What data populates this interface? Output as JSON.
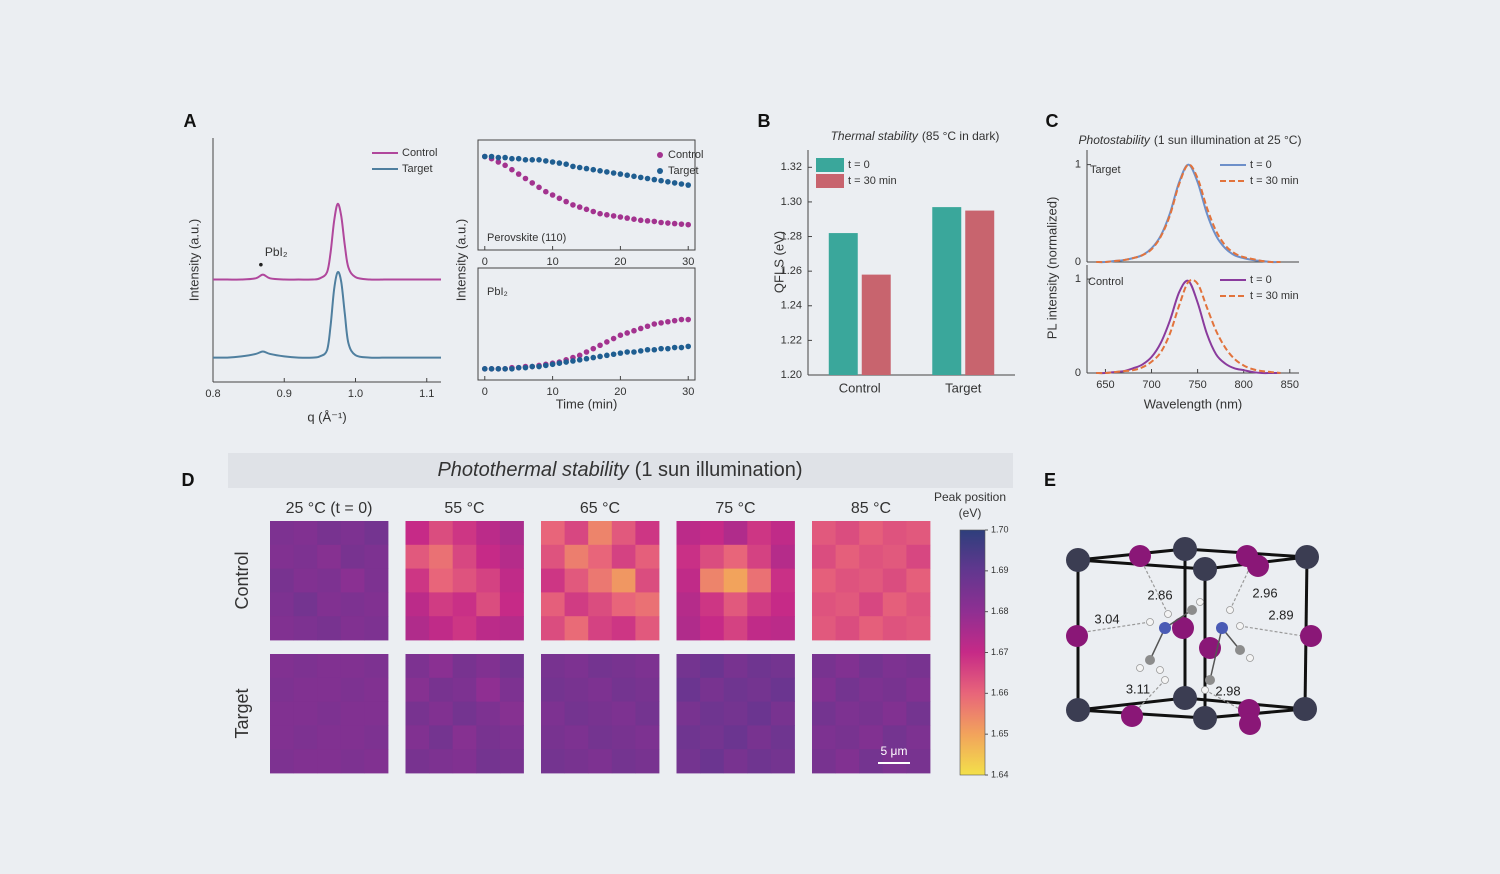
{
  "panel_labels": [
    "A",
    "B",
    "C",
    "D",
    "E"
  ],
  "chart_data": [
    {
      "type": "line",
      "ylabel": "Intensity (a.u.)",
      "xlabel": "q (Å⁻¹)",
      "annotation": "PbI₂",
      "x": [
        0.8,
        0.82,
        0.84,
        0.86,
        0.87,
        0.88,
        0.9,
        0.92,
        0.94,
        0.95,
        0.96,
        0.965,
        0.97,
        0.975,
        0.98,
        0.985,
        0.99,
        1,
        1.02,
        1.04,
        1.06,
        1.08,
        1.1,
        1.12
      ],
      "series": [
        {
          "name": "Control",
          "color": "#b0479c",
          "values": [
            4.2,
            4.2,
            4.2,
            4.25,
            4.4,
            4.25,
            4.2,
            4.2,
            4.2,
            4.25,
            4.5,
            5.3,
            6.6,
            7.3,
            6.8,
            5.6,
            4.7,
            4.3,
            4.2,
            4.2,
            4.2,
            4.2,
            4.2,
            4.2
          ]
        },
        {
          "name": "Target",
          "color": "#4f7f9f",
          "values": [
            1.0,
            1.0,
            1.05,
            1.15,
            1.25,
            1.15,
            1.05,
            1.0,
            1.0,
            1.05,
            1.3,
            2.3,
            3.8,
            4.5,
            4.1,
            2.8,
            1.6,
            1.1,
            1.0,
            1.0,
            1.0,
            1.0,
            1.0,
            1.0
          ]
        }
      ],
      "xlim": [
        0.8,
        1.12
      ],
      "xticks": [
        0.8,
        0.9,
        {
          "value": 1,
          "label": "1.0"
        },
        1.1
      ],
      "ylim": [
        0,
        10
      ],
      "legend": "upper right"
    },
    {
      "type": "scatter",
      "label": "Perovskite (110)",
      "x": [
        0,
        1,
        2,
        3,
        4,
        5,
        6,
        7,
        8,
        9,
        10,
        11,
        12,
        13,
        14,
        15,
        16,
        17,
        18,
        19,
        20,
        21,
        22,
        23,
        24,
        25,
        26,
        27,
        28,
        29,
        30
      ],
      "series": [
        {
          "name": "Control",
          "color": "#a3338f",
          "values": [
            0.85,
            0.83,
            0.8,
            0.77,
            0.73,
            0.69,
            0.65,
            0.61,
            0.57,
            0.53,
            0.5,
            0.47,
            0.44,
            0.41,
            0.39,
            0.37,
            0.35,
            0.33,
            0.32,
            0.31,
            0.3,
            0.29,
            0.28,
            0.27,
            0.265,
            0.26,
            0.25,
            0.245,
            0.24,
            0.235,
            0.23
          ]
        },
        {
          "name": "Target",
          "color": "#1f5e91",
          "values": [
            0.85,
            0.85,
            0.84,
            0.84,
            0.83,
            0.83,
            0.82,
            0.82,
            0.82,
            0.81,
            0.8,
            0.79,
            0.78,
            0.76,
            0.75,
            0.74,
            0.73,
            0.72,
            0.71,
            0.7,
            0.69,
            0.68,
            0.67,
            0.66,
            0.65,
            0.64,
            0.63,
            0.62,
            0.61,
            0.6,
            0.59
          ]
        }
      ],
      "xlim": [
        -1,
        31
      ],
      "xticks": [
        0,
        10,
        20,
        30
      ],
      "ylim": [
        0,
        1
      ],
      "legend": "upper right"
    },
    {
      "type": "scatter",
      "label": "PbI₂",
      "xlabel": "Time (min)",
      "ylabel": "Intensity (a.u.)",
      "x": [
        0,
        1,
        2,
        3,
        4,
        5,
        6,
        7,
        8,
        9,
        10,
        11,
        12,
        13,
        14,
        15,
        16,
        17,
        18,
        19,
        20,
        21,
        22,
        23,
        24,
        25,
        26,
        27,
        28,
        29,
        30
      ],
      "series": [
        {
          "color": "#a3338f",
          "values": [
            0.1,
            0.1,
            0.1,
            0.1,
            0.11,
            0.11,
            0.12,
            0.12,
            0.13,
            0.14,
            0.15,
            0.16,
            0.18,
            0.2,
            0.22,
            0.25,
            0.28,
            0.31,
            0.34,
            0.37,
            0.4,
            0.42,
            0.44,
            0.46,
            0.48,
            0.5,
            0.51,
            0.52,
            0.53,
            0.54,
            0.54
          ]
        },
        {
          "color": "#1f5e91",
          "values": [
            0.1,
            0.1,
            0.1,
            0.1,
            0.1,
            0.11,
            0.11,
            0.12,
            0.12,
            0.13,
            0.14,
            0.15,
            0.16,
            0.17,
            0.18,
            0.19,
            0.2,
            0.21,
            0.22,
            0.23,
            0.24,
            0.25,
            0.25,
            0.26,
            0.27,
            0.27,
            0.28,
            0.28,
            0.29,
            0.29,
            0.3
          ]
        }
      ],
      "xlim": [
        -1,
        31
      ],
      "xticks": [
        0,
        10,
        20,
        30
      ],
      "ylim": [
        0,
        1
      ]
    },
    {
      "type": "bar",
      "title": {
        "italic": "Thermal stability",
        "rest": "(85 °C in dark)"
      },
      "ylabel": "QFLS (eV)",
      "categories": [
        "Control",
        "Target"
      ],
      "series": [
        {
          "name": "t = 0",
          "color": "#3aa79b",
          "values": [
            1.282,
            1.297
          ]
        },
        {
          "name": "t = 30 min",
          "color": "#c8646e",
          "values": [
            1.258,
            1.295
          ]
        }
      ],
      "ylim": [
        1.2,
        1.33
      ],
      "yticks": [
        {
          "value": 1.2,
          "label": "1.20"
        },
        1.22,
        1.24,
        1.26,
        1.28,
        {
          "value": 1.3,
          "label": "1.30"
        },
        1.32
      ],
      "legend": "upper left"
    },
    {
      "type": "line",
      "title": {
        "italic": "Photostability",
        "rest": "(1 sun illumination at 25 °C)"
      },
      "ylabel": "PL intensity (normalized)",
      "label": "Target",
      "x": [
        640,
        650,
        660,
        670,
        680,
        690,
        700,
        710,
        720,
        730,
        740,
        750,
        760,
        770,
        780,
        790,
        800,
        810,
        820,
        830,
        840
      ],
      "series": [
        {
          "name": "t = 0",
          "color": "#6d8fc9",
          "dash": false,
          "values": [
            0,
            0,
            0.01,
            0.02,
            0.04,
            0.07,
            0.14,
            0.27,
            0.5,
            0.82,
            1,
            0.82,
            0.5,
            0.27,
            0.14,
            0.07,
            0.04,
            0.02,
            0.01,
            0,
            0
          ]
        },
        {
          "name": "t = 30 min",
          "color": "#e2733c",
          "dash": true,
          "values": [
            0,
            0,
            0.01,
            0.02,
            0.04,
            0.07,
            0.13,
            0.26,
            0.48,
            0.8,
            1,
            0.86,
            0.56,
            0.32,
            0.17,
            0.09,
            0.05,
            0.03,
            0.01,
            0,
            0
          ]
        }
      ],
      "xlim": [
        630,
        860
      ],
      "ylim": [
        0,
        1.15
      ],
      "yticks": [
        0,
        1
      ],
      "legend": "upper right"
    },
    {
      "type": "line",
      "label": "Control",
      "xlabel": "Wavelength (nm)",
      "x": [
        640,
        650,
        660,
        670,
        680,
        690,
        700,
        710,
        720,
        730,
        740,
        750,
        760,
        770,
        780,
        790,
        800,
        810,
        820,
        830,
        840
      ],
      "series": [
        {
          "name": "t = 0",
          "color": "#8a3b9d",
          "dash": false,
          "values": [
            0,
            0,
            0.01,
            0.02,
            0.05,
            0.09,
            0.17,
            0.32,
            0.56,
            0.86,
            0.98,
            0.75,
            0.42,
            0.2,
            0.1,
            0.05,
            0.03,
            0.01,
            0,
            0,
            0
          ]
        },
        {
          "name": "t = 30 min",
          "color": "#e2733c",
          "dash": true,
          "values": [
            0,
            0,
            0.01,
            0.02,
            0.03,
            0.06,
            0.12,
            0.22,
            0.42,
            0.72,
            0.97,
            0.95,
            0.7,
            0.45,
            0.27,
            0.15,
            0.08,
            0.04,
            0.02,
            0.01,
            0
          ]
        }
      ],
      "xlim": [
        630,
        860
      ],
      "xticks": [
        650,
        700,
        750,
        800,
        850
      ],
      "ylim": [
        0,
        1.15
      ],
      "yticks": [
        0,
        1
      ],
      "legend": "upper right"
    },
    {
      "type": "heatmap",
      "title": {
        "italic": "Photothermal stability",
        "rest": "(1 sun illumination)"
      },
      "columns": [
        "25 °C (t = 0)",
        "55 °C",
        "65 °C",
        "75 °C",
        "85 °C"
      ],
      "rows": [
        "Control",
        "Target"
      ],
      "row_colors": [
        "#c8619c",
        "#6b8fb0"
      ],
      "colorbar_label": [
        "Peak position",
        "(eV)"
      ],
      "clim": [
        1.64,
        1.7
      ],
      "cticks": [
        1.64,
        1.65,
        1.66,
        1.67,
        1.68,
        1.69,
        {
          "value": 1.7,
          "label": "1.70"
        }
      ],
      "colormap": [
        "#f3e04a",
        "#f2a35c",
        "#e8657a",
        "#c62a87",
        "#8f2f92",
        "#62378f",
        "#2e3f7c"
      ],
      "scale_bar": "5 μm",
      "maps": [
        [
          [
            [
              1.684,
              1.683,
              1.685,
              1.684,
              1.686
            ],
            [
              1.683,
              1.684,
              1.682,
              1.685,
              1.684
            ],
            [
              1.685,
              1.683,
              1.684,
              1.681,
              1.684
            ],
            [
              1.684,
              1.686,
              1.683,
              1.684,
              1.683
            ],
            [
              1.683,
              1.684,
              1.685,
              1.683,
              1.684
            ]
          ],
          [
            [
              1.67,
              1.664,
              1.668,
              1.672,
              1.675
            ],
            [
              1.662,
              1.658,
              1.665,
              1.67,
              1.673
            ],
            [
              1.668,
              1.66,
              1.663,
              1.666,
              1.671
            ],
            [
              1.672,
              1.667,
              1.669,
              1.664,
              1.67
            ],
            [
              1.674,
              1.671,
              1.668,
              1.672,
              1.673
            ]
          ],
          [
            [
              1.66,
              1.665,
              1.655,
              1.662,
              1.668
            ],
            [
              1.663,
              1.656,
              1.66,
              1.666,
              1.661
            ],
            [
              1.668,
              1.662,
              1.657,
              1.652,
              1.664
            ],
            [
              1.661,
              1.667,
              1.664,
              1.66,
              1.658
            ],
            [
              1.664,
              1.659,
              1.666,
              1.668,
              1.662
            ]
          ],
          [
            [
              1.672,
              1.67,
              1.674,
              1.668,
              1.671
            ],
            [
              1.669,
              1.664,
              1.66,
              1.666,
              1.673
            ],
            [
              1.671,
              1.655,
              1.65,
              1.658,
              1.669
            ],
            [
              1.673,
              1.668,
              1.662,
              1.667,
              1.67
            ],
            [
              1.674,
              1.67,
              1.666,
              1.671,
              1.672
            ]
          ],
          [
            [
              1.662,
              1.664,
              1.661,
              1.663,
              1.662
            ],
            [
              1.664,
              1.661,
              1.663,
              1.662,
              1.665
            ],
            [
              1.661,
              1.663,
              1.662,
              1.664,
              1.661
            ],
            [
              1.663,
              1.662,
              1.665,
              1.661,
              1.663
            ],
            [
              1.662,
              1.664,
              1.661,
              1.663,
              1.662
            ]
          ]
        ],
        [
          [
            [
              1.683,
              1.684,
              1.683,
              1.683,
              1.684
            ],
            [
              1.684,
              1.683,
              1.683,
              1.684,
              1.683
            ],
            [
              1.683,
              1.683,
              1.684,
              1.683,
              1.683
            ],
            [
              1.683,
              1.684,
              1.683,
              1.683,
              1.684
            ],
            [
              1.684,
              1.683,
              1.683,
              1.684,
              1.683
            ]
          ],
          [
            [
              1.684,
              1.681,
              1.685,
              1.683,
              1.686
            ],
            [
              1.682,
              1.685,
              1.684,
              1.68,
              1.684
            ],
            [
              1.685,
              1.683,
              1.686,
              1.684,
              1.682
            ],
            [
              1.683,
              1.686,
              1.682,
              1.685,
              1.684
            ],
            [
              1.685,
              1.684,
              1.683,
              1.686,
              1.685
            ]
          ],
          [
            [
              1.685,
              1.684,
              1.686,
              1.685,
              1.684
            ],
            [
              1.686,
              1.685,
              1.684,
              1.686,
              1.685
            ],
            [
              1.684,
              1.686,
              1.685,
              1.684,
              1.686
            ],
            [
              1.685,
              1.684,
              1.686,
              1.685,
              1.684
            ],
            [
              1.686,
              1.685,
              1.684,
              1.686,
              1.685
            ]
          ],
          [
            [
              1.686,
              1.688,
              1.685,
              1.687,
              1.686
            ],
            [
              1.688,
              1.685,
              1.687,
              1.686,
              1.688
            ],
            [
              1.685,
              1.687,
              1.686,
              1.688,
              1.685
            ],
            [
              1.687,
              1.686,
              1.688,
              1.685,
              1.687
            ],
            [
              1.686,
              1.688,
              1.685,
              1.687,
              1.686
            ]
          ],
          [
            [
              1.685,
              1.683,
              1.686,
              1.684,
              1.685
            ],
            [
              1.683,
              1.686,
              1.684,
              1.685,
              1.683
            ],
            [
              1.686,
              1.684,
              1.685,
              1.683,
              1.686
            ],
            [
              1.684,
              1.685,
              1.683,
              1.686,
              1.684
            ],
            [
              1.685,
              1.683,
              1.686,
              1.684,
              1.685
            ]
          ]
        ]
      ]
    }
  ],
  "diagram": {
    "distances": [
      2.86,
      3.04,
      3.11,
      2.98,
      2.96,
      2.89
    ]
  }
}
